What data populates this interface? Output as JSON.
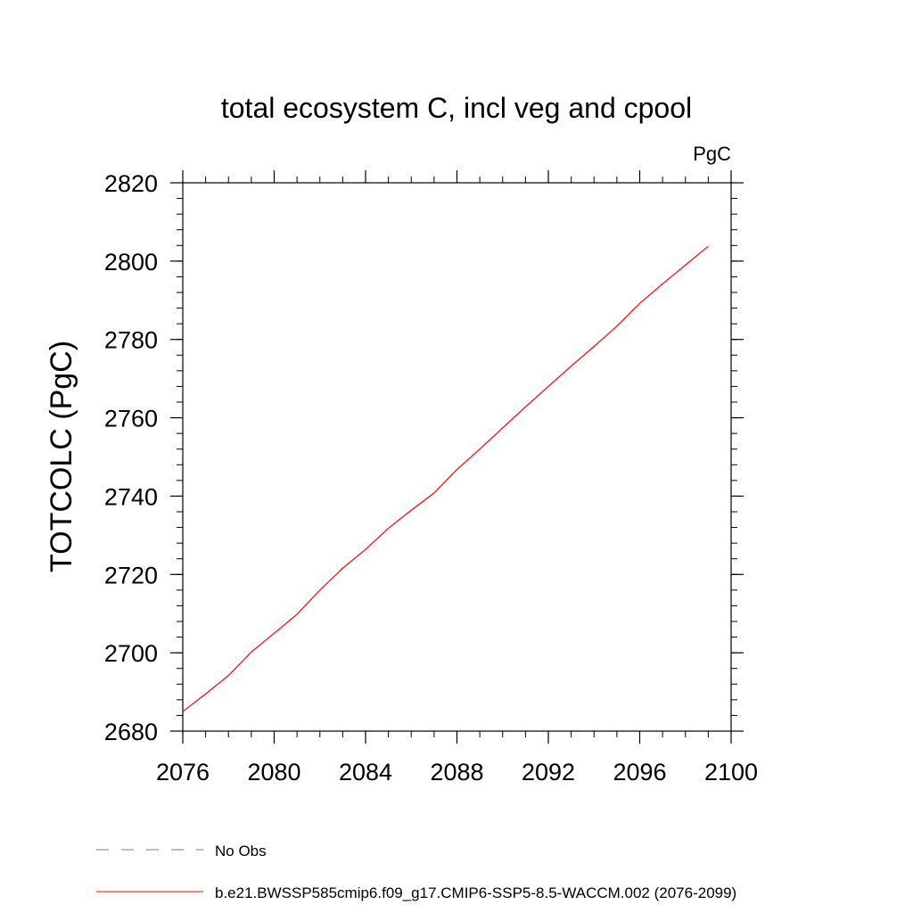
{
  "chart_data": {
    "type": "line",
    "title": "total ecosystem C, incl veg and cpool",
    "units": "PgC",
    "xlabel": "",
    "ylabel": "TOTCOLC  (PgC)",
    "xlim": [
      2076,
      2100
    ],
    "ylim": [
      2680,
      2820
    ],
    "x_ticks": [
      2076,
      2080,
      2084,
      2088,
      2092,
      2096,
      2100
    ],
    "y_ticks": [
      2680,
      2700,
      2720,
      2740,
      2760,
      2780,
      2800,
      2820
    ],
    "series": [
      {
        "name": "b.e21.BWSSP585cmip6.f09_g17.CMIP6-SSP5-8.5-WACCM.002 (2076-2099)",
        "color": "#ff0000",
        "style": "solid",
        "x": [
          2076,
          2077,
          2078,
          2079,
          2080,
          2081,
          2082,
          2083,
          2084,
          2085,
          2086,
          2087,
          2088,
          2089,
          2090,
          2091,
          2092,
          2093,
          2094,
          2095,
          2096,
          2097,
          2098,
          2099
        ],
        "y": [
          2685,
          2689.5,
          2694.2,
          2700.2,
          2705,
          2709.8,
          2716,
          2721.6,
          2726.4,
          2731.8,
          2736.4,
          2740.8,
          2746.8,
          2752,
          2757.4,
          2762.8,
          2768,
          2773.2,
          2778.2,
          2783.4,
          2789.2,
          2794.2,
          2799,
          2803.8
        ]
      },
      {
        "name": "No Obs",
        "color": "#7a70b8",
        "style": "dashed",
        "x": [],
        "y": []
      }
    ],
    "legend": {
      "placement": "bottom-left"
    }
  }
}
